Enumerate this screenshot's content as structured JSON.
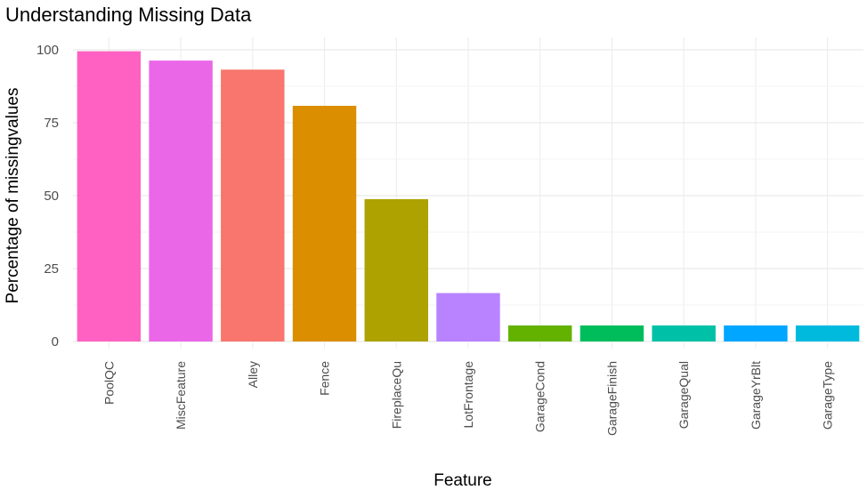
{
  "chart_data": {
    "type": "bar",
    "title": "Understanding Missing Data",
    "xlabel": "Feature",
    "ylabel": "Percentage of missingvalues",
    "ylim": [
      0,
      100
    ],
    "yticks": [
      0,
      25,
      50,
      75,
      100
    ],
    "grid": true,
    "legend": "none",
    "categories": [
      "PoolQC",
      "MiscFeature",
      "Alley",
      "Fence",
      "FireplaceQu",
      "LotFrontage",
      "GarageCond",
      "GarageFinish",
      "GarageQual",
      "GarageYrBlt",
      "GarageType"
    ],
    "values": [
      99.5,
      96.3,
      93.2,
      80.8,
      48.8,
      16.6,
      5.5,
      5.5,
      5.5,
      5.5,
      5.5
    ],
    "colors": [
      "#FF61C3",
      "#EA67E8",
      "#F8766D",
      "#DB8E00",
      "#AEA200",
      "#B983FF",
      "#64B200",
      "#00BD5C",
      "#00C1A7",
      "#00A6FF",
      "#00BADE"
    ]
  }
}
